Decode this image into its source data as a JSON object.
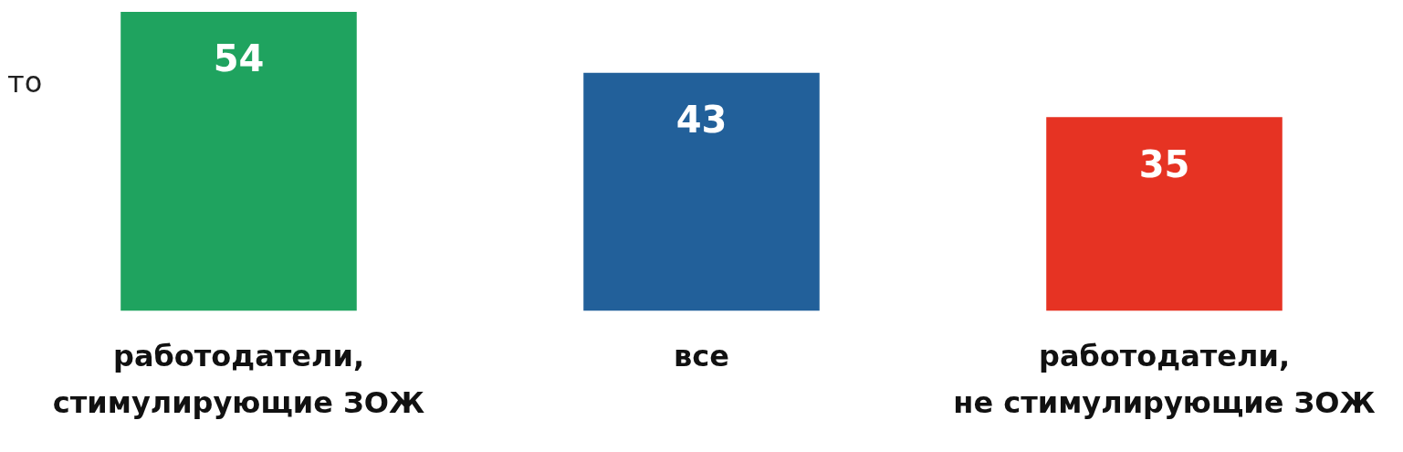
{
  "chart_data": {
    "type": "bar",
    "categories": [
      "работодатели, стимулирующие ЗОЖ",
      "все",
      "работодатели, не стимулирующие ЗОЖ"
    ],
    "values": [
      54,
      43,
      35
    ],
    "colors": [
      "#1fa35f",
      "#22609a",
      "#e63323"
    ],
    "data_labels": true,
    "legend": false,
    "annotations": [
      "то"
    ]
  }
}
